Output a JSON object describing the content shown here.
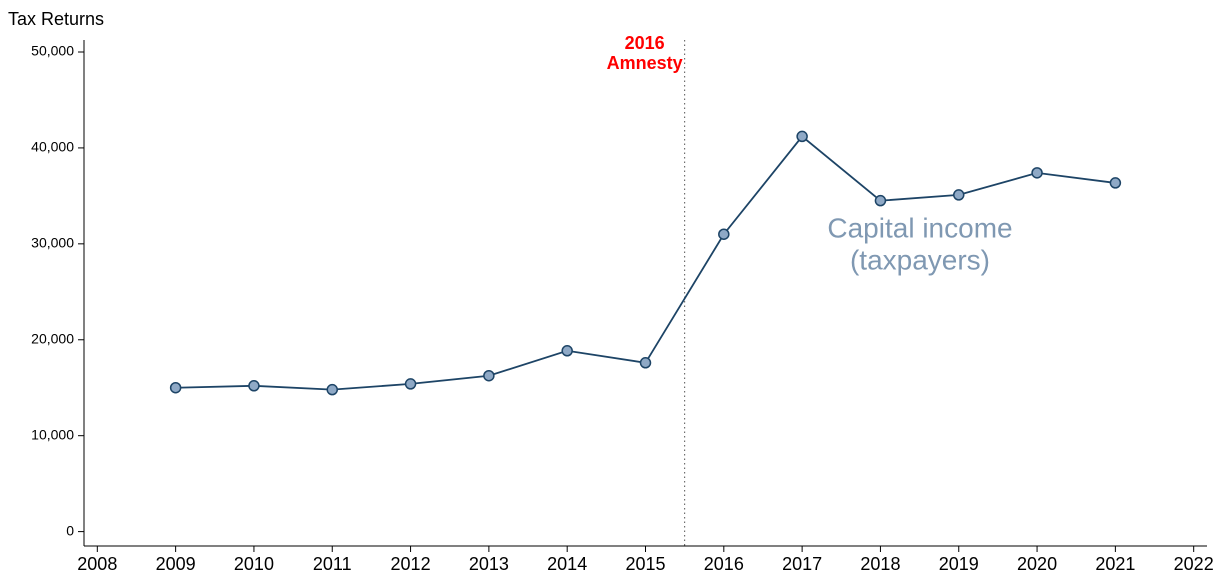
{
  "chart_data": {
    "type": "line",
    "ylabel": "Tax Returns",
    "x": [
      2009,
      2010,
      2011,
      2012,
      2013,
      2014,
      2015,
      2016,
      2017,
      2018,
      2019,
      2020,
      2021
    ],
    "series": [
      {
        "name": "Capital income (taxpayers)",
        "label": [
          "Capital income",
          "(taxpayers)"
        ],
        "color": "#1d4466",
        "marker_color": "#8fa9c6",
        "label_color": "#7f98b2",
        "values": [
          15000,
          15200,
          14800,
          15400,
          16250,
          18850,
          17600,
          31000,
          41200,
          34500,
          35100,
          37400,
          36350
        ]
      }
    ],
    "xlim": [
      2007.83,
      2022.17
    ],
    "xticks": [
      2008,
      2009,
      2010,
      2011,
      2012,
      2013,
      2014,
      2015,
      2016,
      2017,
      2018,
      2019,
      2020,
      2021,
      2022
    ],
    "ylim": [
      -1500,
      51250
    ],
    "yticks": [
      0,
      {
        "value": 10000,
        "label": "10,000"
      },
      {
        "value": 20000,
        "label": "20,000"
      },
      {
        "value": 30000,
        "label": "30,000"
      },
      {
        "value": 40000,
        "label": "40,000"
      },
      {
        "value": 50000,
        "label": "50,000"
      }
    ],
    "annotations": [
      {
        "x": 2015.5,
        "text": [
          "2016",
          "Amnesty"
        ],
        "color": "#ff0000"
      }
    ]
  }
}
